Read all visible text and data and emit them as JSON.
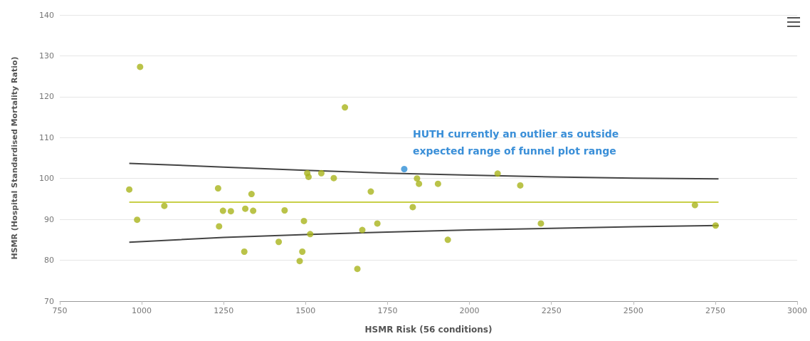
{
  "chart_data": {
    "type": "scatter",
    "xlabel": "HSMR Risk (56 conditions)",
    "ylabel": "HSMR (Hospital Standardised Mortality Ratio)",
    "xlim": [
      750,
      3000
    ],
    "xticks": [
      750,
      1000,
      1250,
      1500,
      1750,
      2000,
      2250,
      2500,
      2750,
      3000
    ],
    "ylim": [
      70,
      140
    ],
    "yticks": [
      70,
      80,
      90,
      100,
      110,
      120,
      130,
      140
    ],
    "grid": "y",
    "marker": "circle",
    "annotations": [
      {
        "text": "HUTH currently an outlier as outside expected range of funnel plot range",
        "x": 1801,
        "y": 102.3
      }
    ],
    "series": [
      {
        "type": "scatter",
        "color": "#a9b41c",
        "x": [
          995,
          962,
          986,
          1069,
          1233,
          1236,
          1248,
          1272,
          1316,
          1340,
          1335,
          1313,
          1418,
          1436,
          1482,
          1490,
          1495,
          1514,
          1505,
          1509,
          1548,
          1586,
          1620,
          1699,
          1673,
          1719,
          1658,
          1840,
          1846,
          1827,
          1904,
          1934,
          2086,
          2155,
          2218,
          2688,
          2751
        ],
        "values": [
          127.3,
          97.3,
          89.9,
          93.3,
          97.6,
          88.3,
          92.1,
          92.0,
          92.6,
          92.1,
          96.2,
          82.1,
          84.5,
          92.2,
          79.8,
          82.1,
          89.6,
          86.4,
          101.3,
          100.4,
          101.3,
          100.1,
          117.4,
          96.8,
          87.4,
          89.0,
          77.9,
          100.0,
          98.7,
          93.0,
          98.7,
          85.0,
          101.2,
          98.3,
          89.0,
          93.5,
          88.5
        ]
      },
      {
        "type": "scatter",
        "color": "#2f8fd6",
        "x": [
          1801
        ],
        "values": [
          102.3
        ]
      },
      {
        "type": "line",
        "marker": "none",
        "color": "#c8cf48",
        "x": [
          962,
          2760
        ],
        "values": [
          94.2,
          94.2
        ]
      },
      {
        "type": "line",
        "marker": "none",
        "color": "#444444",
        "x": [
          962,
          1250,
          1500,
          1750,
          2000,
          2250,
          2500,
          2760
        ],
        "values": [
          103.7,
          102.8,
          102.0,
          101.3,
          100.8,
          100.4,
          100.1,
          99.9
        ]
      },
      {
        "type": "line",
        "marker": "none",
        "color": "#444444",
        "x": [
          962,
          1250,
          1500,
          1750,
          2000,
          2250,
          2500,
          2760
        ],
        "values": [
          84.4,
          85.6,
          86.3,
          86.9,
          87.4,
          87.8,
          88.2,
          88.5
        ]
      }
    ]
  }
}
